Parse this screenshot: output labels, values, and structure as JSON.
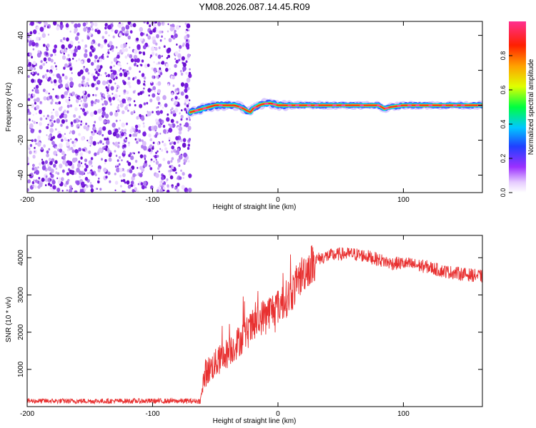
{
  "title": "YM08.2026.087.14.45.R09",
  "colors": {
    "spectrogram_dot": "#7a1fe0",
    "spectrogram_dot_light": "#c9a6f5",
    "snr_line": "#e83030",
    "axis": "#000000"
  },
  "chart_data": [
    {
      "type": "heatmap",
      "panel": "spectrogram",
      "xlabel": "Height of straight line (km)",
      "ylabel": "Frequency (Hz)",
      "xlim": [
        -200,
        163
      ],
      "ylim": [
        -50,
        48
      ],
      "xticks": [
        -200,
        -100,
        0,
        100
      ],
      "xtick_labels": [
        "-200",
        "-100",
        "0",
        "100"
      ],
      "yticks": [
        -40,
        -20,
        0,
        20,
        40
      ],
      "ytick_labels": [
        "-40",
        "-20",
        "0",
        "20",
        "40"
      ],
      "noise_region_x": [
        -200,
        -70
      ],
      "signal_track": {
        "x": [
          -70,
          -65,
          -60,
          -55,
          -50,
          -45,
          -40,
          -35,
          -30,
          -25,
          -22,
          -20,
          -15,
          -10,
          -5,
          0,
          20,
          50,
          80,
          85,
          90,
          100,
          120,
          163
        ],
        "freq": [
          -4,
          -3,
          -2,
          -1,
          0,
          0,
          0,
          0,
          -1,
          -3,
          -4,
          -2,
          0,
          1,
          1,
          0,
          0,
          0,
          0,
          -2,
          -1,
          0,
          0,
          0
        ]
      }
    },
    {
      "type": "line",
      "panel": "snr",
      "xlabel": "Height of straight line (km)",
      "ylabel": "SNR (10 * v/v)",
      "xlim": [
        -200,
        163
      ],
      "ylim": [
        0,
        4600
      ],
      "xticks": [
        -200,
        -100,
        0,
        100
      ],
      "xtick_labels": [
        "-200",
        "-100",
        "0",
        "100"
      ],
      "yticks": [
        1000,
        2000,
        3000,
        4000
      ],
      "ytick_labels": [
        "1000",
        "2000",
        "3000",
        "4000"
      ],
      "series": [
        {
          "name": "SNR",
          "x": [
            -200,
            -150,
            -100,
            -62,
            -58,
            -50,
            -40,
            -30,
            -20,
            -10,
            0,
            10,
            20,
            30,
            40,
            50,
            60,
            70,
            80,
            90,
            100,
            110,
            120,
            130,
            140,
            150,
            163
          ],
          "y": [
            150,
            150,
            150,
            150,
            900,
            1150,
            1450,
            1800,
            2150,
            2500,
            2700,
            3000,
            3600,
            3950,
            4050,
            4100,
            4100,
            4050,
            3950,
            3850,
            3850,
            3800,
            3750,
            3650,
            3600,
            3550,
            3500
          ]
        }
      ]
    },
    {
      "type": "colorbar",
      "panel": "colorbar",
      "label": "Normalized spectral amplitude",
      "range": [
        0,
        1
      ],
      "ticks": [
        0.0,
        0.2,
        0.4,
        0.6,
        0.8
      ],
      "tick_labels": [
        "0.0",
        "0.2",
        "0.4",
        "0.6",
        "0.8"
      ],
      "colormap": [
        "#ffffff",
        "#9b30ff",
        "#2040ff",
        "#00c8ff",
        "#00ff40",
        "#e0ff00",
        "#ffa000",
        "#ff2000",
        "#ff3090"
      ]
    }
  ]
}
